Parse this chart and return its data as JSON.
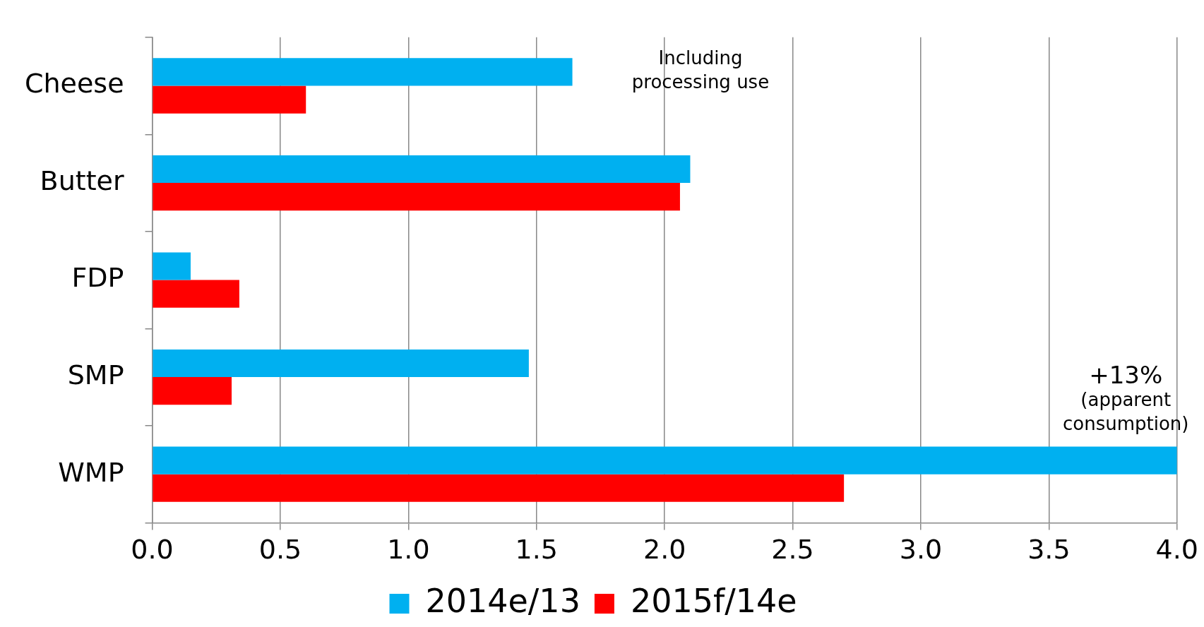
{
  "chart_data": {
    "type": "bar",
    "orientation": "horizontal",
    "categories": [
      "Cheese",
      "Butter",
      "FDP",
      "SMP",
      "WMP"
    ],
    "series": [
      {
        "name": "2014e/13",
        "color": "#00b0f0",
        "values": [
          1.64,
          2.1,
          0.15,
          1.47,
          4.0
        ]
      },
      {
        "name": "2015f/14e",
        "color": "#ff0000",
        "values": [
          0.6,
          2.06,
          0.34,
          0.31,
          2.7
        ]
      }
    ],
    "xlim": [
      0,
      4
    ],
    "xticks": [
      {
        "value": 0,
        "label": "0.0"
      },
      {
        "value": 0.5,
        "label": "0.5"
      },
      {
        "value": 1,
        "label": "1.0"
      },
      {
        "value": 1.5,
        "label": "1.5"
      },
      {
        "value": 2,
        "label": "2.0"
      },
      {
        "value": 2.5,
        "label": "2.5"
      },
      {
        "value": 3,
        "label": "3.0"
      },
      {
        "value": 3.5,
        "label": "3.5"
      },
      {
        "value": 4,
        "label": "4.0"
      }
    ],
    "grid": "x",
    "legend": "bottom",
    "annotations": [
      "Including\nprocessing use",
      "+13%\n(apparent\nconsumption)"
    ]
  }
}
